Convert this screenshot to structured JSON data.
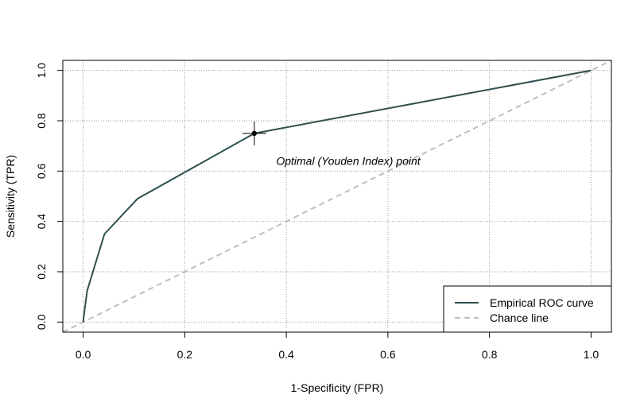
{
  "chart_data": {
    "type": "line",
    "title": "",
    "xlabel": "1-Specificity (FPR)",
    "ylabel": "Sensitivity (TPR)",
    "xlim": [
      -0.04,
      1.04
    ],
    "ylim": [
      -0.04,
      1.04
    ],
    "x_ticks": [
      0.0,
      0.2,
      0.4,
      0.6,
      0.8,
      1.0
    ],
    "y_ticks": [
      0.0,
      0.2,
      0.4,
      0.6,
      0.8,
      1.0
    ],
    "x_tick_labels": [
      "0.0",
      "0.2",
      "0.4",
      "0.6",
      "0.8",
      "1.0"
    ],
    "y_tick_labels": [
      "0.0",
      "0.2",
      "0.4",
      "0.6",
      "0.8",
      "1.0"
    ],
    "grid": true,
    "legend_position": "bottom-right",
    "series": [
      {
        "name": "Empirical ROC curve",
        "color": "#2f4f4f",
        "style": "solid",
        "x": [
          0.0,
          0.003,
          0.008,
          0.042,
          0.107,
          0.337,
          1.0
        ],
        "y": [
          0.0,
          0.05,
          0.125,
          0.35,
          0.49,
          0.75,
          1.0
        ]
      },
      {
        "name": "Chance line",
        "color": "#bebebe",
        "style": "dashed",
        "x": [
          -0.04,
          1.04
        ],
        "y": [
          -0.04,
          1.04
        ]
      }
    ],
    "optimal_point": {
      "x": 0.337,
      "y": 0.75,
      "label": "Optimal (Youden Index) point",
      "label_x": 0.38,
      "label_y": 0.64
    }
  }
}
